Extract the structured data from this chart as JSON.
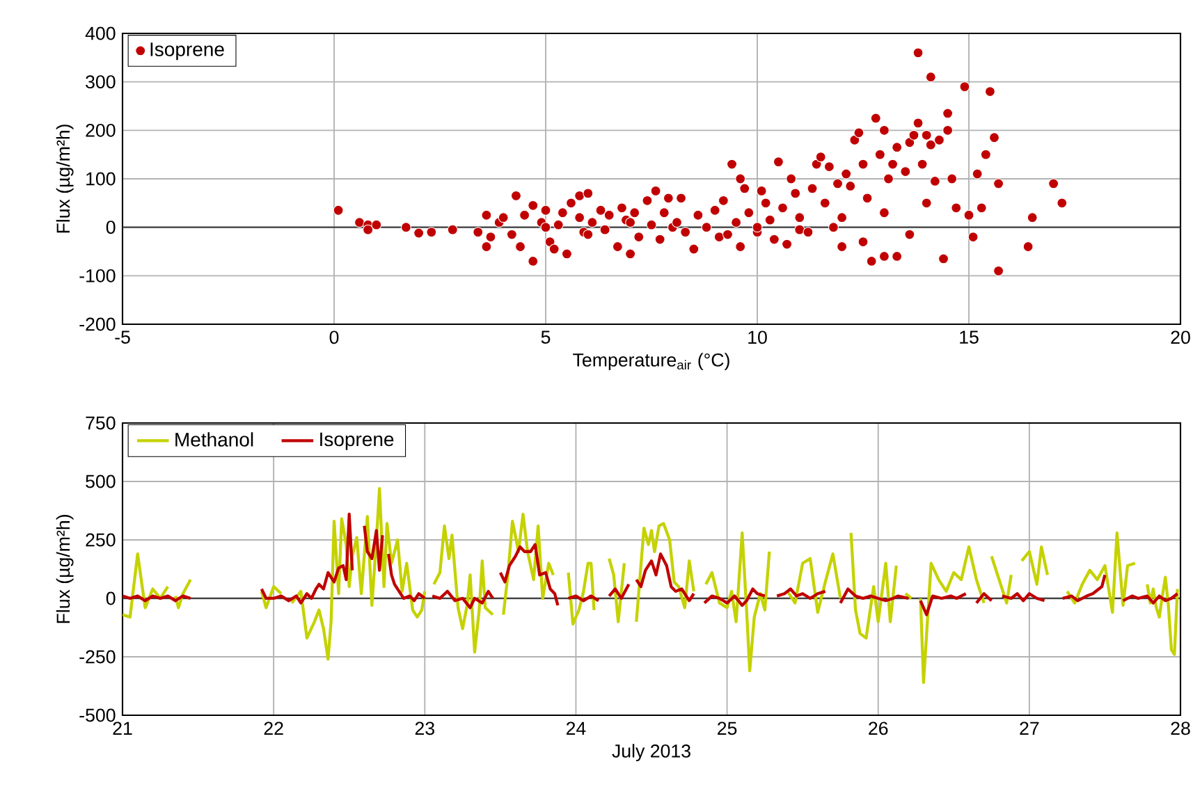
{
  "chart_data": [
    {
      "type": "scatter",
      "xlabel": "Temperature$_{air}$ (°C)",
      "ylabel": "Flux (µg/m²h)",
      "xlim": [
        -5,
        20
      ],
      "xticks": [
        -5,
        0,
        5,
        10,
        15,
        20
      ],
      "ylim": [
        -200,
        400
      ],
      "yticks": [
        -200,
        -100,
        0,
        100,
        200,
        300,
        400
      ],
      "grid": true,
      "legend": "top left",
      "marker": "circle",
      "ref_lines": [
        {
          "axis": "y",
          "value": 0,
          "color": "#404040"
        }
      ],
      "series": [
        {
          "name": "Isoprene",
          "color": "#c00000",
          "x": [
            0.1,
            0.6,
            0.8,
            0.8,
            1.0,
            1.7,
            2.0,
            2.3,
            2.8,
            3.4,
            3.6,
            3.6,
            3.7,
            3.9,
            4.0,
            4.2,
            4.3,
            4.4,
            4.5,
            4.7,
            4.7,
            4.9,
            5.0,
            5.0,
            5.1,
            5.2,
            5.3,
            5.4,
            5.5,
            5.6,
            5.8,
            5.8,
            5.9,
            6.0,
            6.0,
            6.1,
            6.3,
            6.4,
            6.5,
            6.7,
            6.8,
            6.9,
            7.0,
            7.0,
            7.1,
            7.2,
            7.4,
            7.5,
            7.6,
            7.7,
            7.8,
            7.9,
            8.0,
            8.1,
            8.2,
            8.3,
            8.5,
            8.6,
            8.8,
            9.0,
            9.1,
            9.2,
            9.3,
            9.4,
            9.5,
            9.6,
            9.6,
            9.7,
            9.8,
            10.0,
            10.0,
            10.1,
            10.2,
            10.3,
            10.4,
            10.5,
            10.6,
            10.7,
            10.8,
            10.9,
            11.0,
            11.0,
            11.2,
            11.3,
            11.4,
            11.5,
            11.6,
            11.7,
            11.8,
            11.9,
            12.0,
            12.0,
            12.1,
            12.2,
            12.3,
            12.4,
            12.5,
            12.5,
            12.6,
            12.7,
            12.8,
            12.9,
            13.0,
            13.0,
            13.0,
            13.1,
            13.2,
            13.3,
            13.3,
            13.5,
            13.6,
            13.6,
            13.7,
            13.8,
            13.8,
            13.9,
            14.0,
            14.0,
            14.1,
            14.1,
            14.2,
            14.3,
            14.4,
            14.5,
            14.5,
            14.6,
            14.7,
            14.9,
            15.0,
            15.1,
            15.2,
            15.3,
            15.4,
            15.5,
            15.6,
            15.7,
            15.7,
            16.4,
            16.5,
            17.0,
            17.2
          ],
          "values": [
            35,
            10,
            5,
            -5,
            5,
            0,
            -12,
            -10,
            -5,
            -10,
            25,
            -40,
            -20,
            10,
            20,
            -15,
            65,
            -40,
            25,
            45,
            -70,
            10,
            35,
            0,
            -30,
            -45,
            5,
            30,
            -55,
            50,
            65,
            20,
            -10,
            70,
            -15,
            10,
            35,
            -5,
            25,
            -40,
            40,
            15,
            -55,
            10,
            30,
            -20,
            55,
            5,
            75,
            -25,
            30,
            60,
            0,
            10,
            60,
            -10,
            -45,
            25,
            0,
            35,
            -20,
            55,
            -15,
            130,
            10,
            100,
            -40,
            80,
            30,
            -10,
            0,
            75,
            50,
            15,
            -25,
            135,
            40,
            -35,
            100,
            70,
            20,
            -5,
            -10,
            80,
            130,
            145,
            50,
            125,
            0,
            90,
            -40,
            20,
            110,
            85,
            180,
            195,
            130,
            -30,
            60,
            -70,
            225,
            150,
            200,
            -60,
            30,
            100,
            130,
            165,
            -60,
            115,
            175,
            -15,
            190,
            360,
            215,
            130,
            190,
            50,
            310,
            170,
            95,
            180,
            -65,
            235,
            200,
            100,
            40,
            290,
            25,
            -20,
            110,
            40,
            150,
            280,
            185,
            -90,
            90,
            -40,
            20,
            90,
            50
          ]
        }
      ]
    },
    {
      "type": "line",
      "xlabel": "July 2013",
      "ylabel": "Flux (µg/m²h)",
      "xlim": [
        21,
        28
      ],
      "xticks": [
        21,
        22,
        23,
        24,
        25,
        26,
        27,
        28
      ],
      "ylim": [
        -500,
        750
      ],
      "yticks": [
        -500,
        -250,
        0,
        250,
        500,
        750
      ],
      "grid": true,
      "legend": "top left",
      "line_style": "solid",
      "ref_lines": [
        {
          "axis": "y",
          "value": 0,
          "color": "#404040"
        }
      ],
      "series": [
        {
          "name": "Methanol",
          "color": "#c5d200",
          "x": [
            21.0,
            21.05,
            21.1,
            21.15,
            21.2,
            21.25,
            21.3,
            21.33,
            21.35,
            21.37,
            21.4,
            21.45,
            21.5,
            21.92,
            21.95,
            22.0,
            22.05,
            22.08,
            22.12,
            22.18,
            22.22,
            22.27,
            22.3,
            22.33,
            22.36,
            22.38,
            22.4,
            22.43,
            22.45,
            22.48,
            22.5,
            22.52,
            22.55,
            22.58,
            22.62,
            22.65,
            22.68,
            22.7,
            22.73,
            22.75,
            22.78,
            22.82,
            22.85,
            22.88,
            22.92,
            22.95,
            22.98,
            23.0,
            23.04,
            23.06,
            23.1,
            23.13,
            23.16,
            23.18,
            23.22,
            23.25,
            23.28,
            23.3,
            23.33,
            23.36,
            23.38,
            23.4,
            23.45,
            23.48,
            23.52,
            23.55,
            23.58,
            23.62,
            23.65,
            23.68,
            23.72,
            23.75,
            23.78,
            23.82,
            23.85,
            23.9,
            23.95,
            23.98,
            24.02,
            24.05,
            24.08,
            24.1,
            24.12,
            24.15,
            24.22,
            24.25,
            24.28,
            24.32,
            24.35,
            24.4,
            24.45,
            24.48,
            24.5,
            24.52,
            24.55,
            24.58,
            24.62,
            24.65,
            24.68,
            24.72,
            24.75,
            24.78,
            24.82,
            24.86,
            24.9,
            24.95,
            25.0,
            25.03,
            25.06,
            25.1,
            25.13,
            25.15,
            25.18,
            25.22,
            25.25,
            25.28,
            25.32,
            25.4,
            25.45,
            25.5,
            25.55,
            25.6,
            25.65,
            25.7,
            25.75,
            25.78,
            25.82,
            25.85,
            25.88,
            25.92,
            25.97,
            26.0,
            26.05,
            26.08,
            26.12,
            26.15,
            26.18,
            26.22,
            26.25,
            26.28,
            26.3,
            26.35,
            26.4,
            26.45,
            26.5,
            26.55,
            26.6,
            26.65,
            26.7,
            26.73,
            26.75,
            26.8,
            26.85,
            26.88,
            26.92,
            26.95,
            27.0,
            27.05,
            27.08,
            27.12,
            27.15,
            27.25,
            27.3,
            27.35,
            27.4,
            27.45,
            27.5,
            27.55,
            27.58,
            27.62,
            27.65,
            27.7,
            27.73,
            27.78,
            27.8,
            27.82,
            27.84,
            27.86,
            27.88,
            27.9,
            27.92,
            27.94,
            27.96,
            27.98
          ],
          "values": [
            -70,
            -80,
            190,
            -40,
            40,
            0,
            50,
            null,
            10,
            -40,
            20,
            80,
            null,
            30,
            -40,
            50,
            20,
            null,
            -20,
            30,
            -170,
            -100,
            -50,
            -130,
            -260,
            -100,
            330,
            20,
            340,
            230,
            50,
            180,
            260,
            20,
            350,
            -30,
            250,
            470,
            50,
            320,
            150,
            250,
            30,
            150,
            -50,
            -80,
            -50,
            30,
            null,
            60,
            110,
            310,
            170,
            270,
            -40,
            -130,
            -30,
            100,
            -230,
            -50,
            160,
            -40,
            -70,
            null,
            -70,
            100,
            330,
            200,
            360,
            200,
            80,
            310,
            0,
            150,
            100,
            null,
            110,
            -110,
            -50,
            30,
            150,
            150,
            -50,
            null,
            170,
            100,
            -100,
            150,
            null,
            -100,
            300,
            230,
            290,
            200,
            310,
            320,
            250,
            70,
            50,
            -40,
            160,
            30,
            null,
            60,
            110,
            -20,
            -40,
            30,
            -100,
            280,
            -60,
            -310,
            -80,
            20,
            -50,
            200,
            null,
            30,
            -20,
            150,
            170,
            -60,
            70,
            190,
            0,
            null,
            280,
            -50,
            -150,
            -170,
            50,
            -100,
            150,
            -100,
            140,
            null,
            20,
            0,
            null,
            0,
            -360,
            150,
            80,
            30,
            110,
            80,
            220,
            80,
            -20,
            null,
            180,
            80,
            -20,
            100,
            null,
            160,
            200,
            60,
            220,
            100,
            null,
            30,
            -20,
            60,
            120,
            80,
            140,
            -60,
            280,
            -30,
            140,
            150,
            null,
            60,
            -20,
            40,
            -40,
            -80,
            10,
            90,
            -30,
            -220,
            -240,
            40
          ]
        },
        {
          "name": "Isoprene",
          "color": "#c00000",
          "x": [
            21.0,
            21.05,
            21.1,
            21.15,
            21.2,
            21.25,
            21.3,
            21.35,
            21.4,
            21.45,
            21.5,
            21.92,
            21.95,
            22.0,
            22.05,
            22.1,
            22.15,
            22.18,
            22.22,
            22.25,
            22.28,
            22.3,
            22.33,
            22.36,
            22.4,
            22.43,
            22.46,
            22.48,
            22.5,
            22.52,
            22.56,
            22.6,
            22.62,
            22.65,
            22.68,
            22.7,
            22.72,
            22.74,
            22.76,
            22.78,
            22.8,
            22.83,
            22.86,
            22.9,
            22.93,
            22.96,
            23.0,
            23.03,
            23.05,
            23.1,
            23.15,
            23.2,
            23.25,
            23.3,
            23.33,
            23.38,
            23.42,
            23.45,
            23.48,
            23.5,
            23.53,
            23.56,
            23.6,
            23.63,
            23.66,
            23.7,
            23.73,
            23.76,
            23.8,
            23.83,
            23.86,
            23.88,
            23.9,
            23.95,
            24.0,
            24.05,
            24.1,
            24.15,
            24.18,
            24.22,
            24.26,
            24.3,
            24.35,
            24.38,
            24.4,
            24.43,
            24.46,
            24.5,
            24.53,
            24.56,
            24.6,
            24.63,
            24.66,
            24.7,
            24.75,
            24.78,
            24.82,
            24.85,
            24.9,
            24.95,
            25.0,
            25.05,
            25.1,
            25.13,
            25.17,
            25.2,
            25.25,
            25.3,
            25.33,
            25.38,
            25.42,
            25.46,
            25.5,
            25.55,
            25.6,
            25.65,
            25.7,
            25.75,
            25.8,
            25.85,
            25.9,
            25.95,
            26.0,
            26.05,
            26.1,
            26.13,
            26.2,
            26.25,
            26.28,
            26.32,
            26.36,
            26.42,
            26.48,
            26.52,
            26.58,
            26.62,
            26.65,
            26.7,
            26.75,
            26.78,
            26.82,
            26.88,
            26.92,
            26.96,
            27.0,
            27.05,
            27.1,
            27.15,
            27.22,
            27.28,
            27.32,
            27.38,
            27.42,
            27.46,
            27.48,
            27.5,
            27.55,
            27.62,
            27.68,
            27.72,
            27.78,
            27.82,
            27.86,
            27.9,
            27.94,
            27.98
          ],
          "values": [
            10,
            0,
            10,
            -10,
            10,
            0,
            10,
            -10,
            10,
            0,
            null,
            40,
            0,
            0,
            10,
            -10,
            10,
            -20,
            20,
            0,
            40,
            60,
            40,
            110,
            70,
            130,
            140,
            80,
            360,
            120,
            null,
            310,
            200,
            170,
            290,
            120,
            270,
            null,
            190,
            100,
            60,
            30,
            0,
            10,
            -10,
            20,
            0,
            null,
            10,
            0,
            30,
            -10,
            0,
            -40,
            0,
            -20,
            30,
            0,
            null,
            110,
            70,
            140,
            180,
            220,
            200,
            200,
            230,
            100,
            110,
            40,
            20,
            -30,
            null,
            0,
            10,
            -10,
            10,
            -10,
            null,
            10,
            40,
            0,
            60,
            null,
            80,
            50,
            120,
            160,
            100,
            190,
            140,
            50,
            30,
            40,
            -10,
            20,
            null,
            -20,
            10,
            0,
            -20,
            10,
            -30,
            -10,
            40,
            20,
            10,
            null,
            10,
            20,
            40,
            10,
            20,
            0,
            20,
            30,
            null,
            -20,
            40,
            10,
            0,
            10,
            0,
            -10,
            0,
            10,
            0,
            null,
            -10,
            -70,
            10,
            0,
            10,
            0,
            20,
            null,
            -20,
            20,
            -10,
            null,
            10,
            0,
            20,
            -10,
            20,
            0,
            -10,
            null,
            0,
            10,
            -10,
            10,
            20,
            40,
            50,
            100,
            null,
            -10,
            10,
            0,
            10,
            -20,
            10,
            -10,
            0,
            20
          ]
        }
      ]
    }
  ]
}
